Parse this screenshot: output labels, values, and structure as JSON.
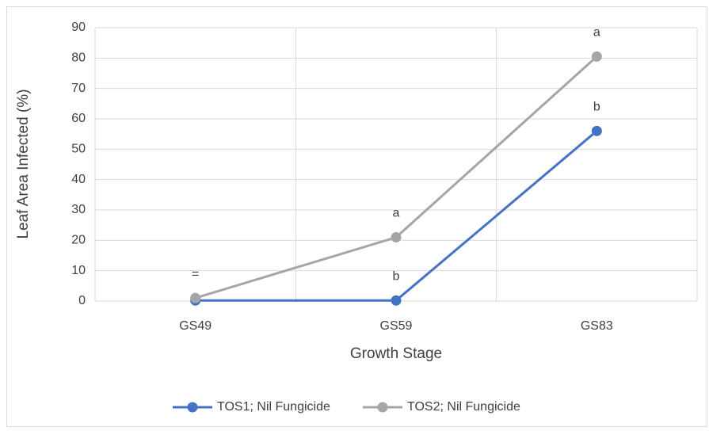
{
  "chart_data": {
    "type": "line",
    "x_label": "Growth Stage",
    "y_label": "Leaf Area Infected (%)",
    "categories": [
      "GS49",
      "GS59",
      "GS83"
    ],
    "series": [
      {
        "name": "TOS1; Nil Fungicide",
        "color": "#4472c4",
        "values": [
          0.2,
          0.2,
          56
        ],
        "labels": [
          null,
          "b",
          "b"
        ]
      },
      {
        "name": "TOS2; Nil Fungicide",
        "color": "#a5a5a5",
        "values": [
          1,
          21,
          80.5
        ],
        "labels": [
          "=",
          "a",
          "a"
        ]
      }
    ],
    "ylim": [
      0,
      90
    ],
    "yticks": [
      0,
      10,
      20,
      30,
      40,
      50,
      60,
      70,
      80,
      90
    ],
    "grid": true,
    "legend": "bottom"
  }
}
